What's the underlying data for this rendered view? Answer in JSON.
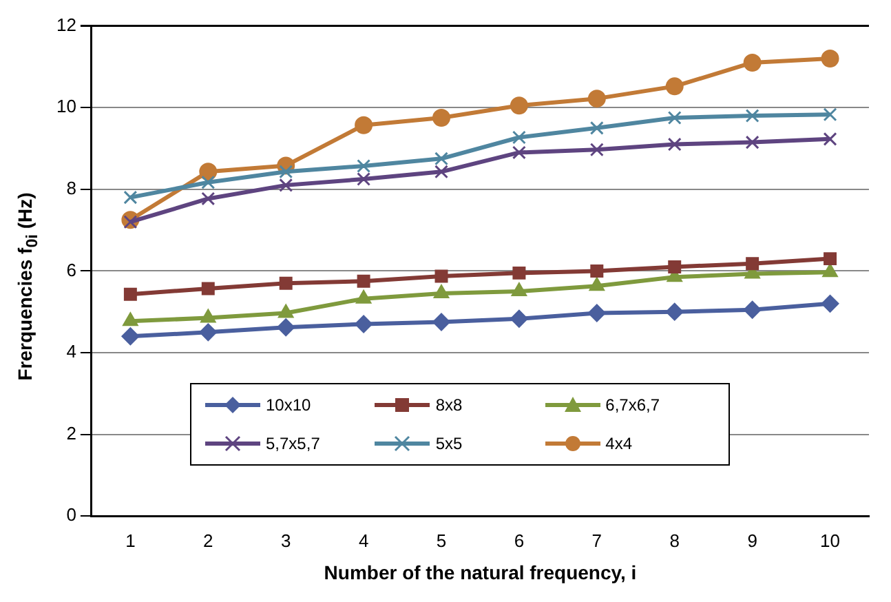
{
  "chart_data": {
    "type": "line",
    "xlabel": "Number of the natural frequency, i",
    "ylabel": "Frerquencies f$_{0i}$ (Hz)",
    "categories": [
      "1",
      "2",
      "3",
      "4",
      "5",
      "6",
      "7",
      "8",
      "9",
      "10"
    ],
    "ylim": [
      0,
      12
    ],
    "yticks": [
      0,
      2,
      4,
      6,
      8,
      10,
      12
    ],
    "grid": "y",
    "legend": "bottom",
    "series": [
      {
        "name": "10x10",
        "color": "#4a5f9e",
        "marker": "diamond",
        "values": [
          4.4,
          4.5,
          4.62,
          4.7,
          4.75,
          4.83,
          4.97,
          5.0,
          5.05,
          5.2
        ]
      },
      {
        "name": "8x8",
        "color": "#833a35",
        "marker": "square",
        "values": [
          5.43,
          5.57,
          5.7,
          5.75,
          5.87,
          5.95,
          6.0,
          6.1,
          6.18,
          6.3
        ]
      },
      {
        "name": "6,7x6,7",
        "color": "#7f9a3d",
        "marker": "triangle",
        "values": [
          4.77,
          4.85,
          4.97,
          5.32,
          5.45,
          5.5,
          5.63,
          5.85,
          5.93,
          5.97
        ]
      },
      {
        "name": "5,7x5,7",
        "color": "#5e4480",
        "marker": "cross",
        "values": [
          7.2,
          7.77,
          8.1,
          8.25,
          8.43,
          8.9,
          8.97,
          9.1,
          9.15,
          9.23
        ]
      },
      {
        "name": "5x5",
        "color": "#4f86a0",
        "marker": "cross",
        "values": [
          7.8,
          8.17,
          8.43,
          8.57,
          8.75,
          9.27,
          9.5,
          9.75,
          9.8,
          9.83
        ]
      },
      {
        "name": "4x4",
        "color": "#c27a36",
        "marker": "circle",
        "values": [
          7.25,
          8.43,
          8.58,
          9.57,
          9.75,
          10.05,
          10.22,
          10.52,
          11.1,
          11.2
        ]
      }
    ]
  }
}
